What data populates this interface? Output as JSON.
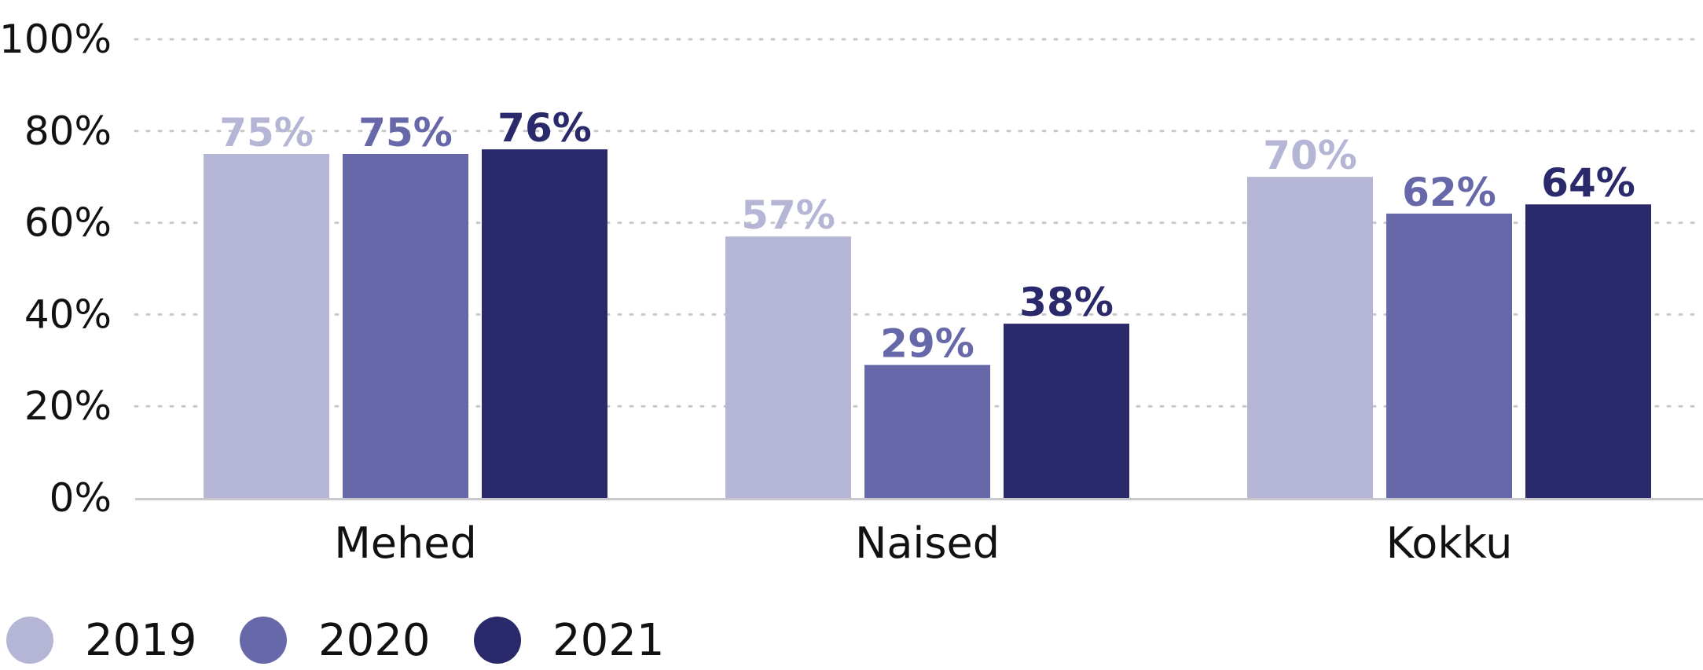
{
  "chart_data": {
    "type": "bar",
    "categories": [
      "Mehed",
      "Naised",
      "Kokku"
    ],
    "series": [
      {
        "name": "2019",
        "values": [
          75,
          57,
          70
        ],
        "labels": [
          "75%",
          "57%",
          "70%"
        ],
        "color": "#b5b6d5"
      },
      {
        "name": "2020",
        "values": [
          75,
          29,
          62
        ],
        "labels": [
          "75%",
          "29%",
          "62%"
        ],
        "color": "#6768a9"
      },
      {
        "name": "2021",
        "values": [
          76,
          38,
          64
        ],
        "labels": [
          "76%",
          "38%",
          "64%"
        ],
        "color": "#29296b"
      }
    ],
    "yticks": [
      "0%",
      "20%",
      "40%",
      "60%",
      "80%",
      "100%"
    ],
    "ylim": [
      0,
      100
    ],
    "grid": true,
    "legend_position": "bottom-left",
    "title": "",
    "xlabel": "",
    "ylabel": ""
  }
}
